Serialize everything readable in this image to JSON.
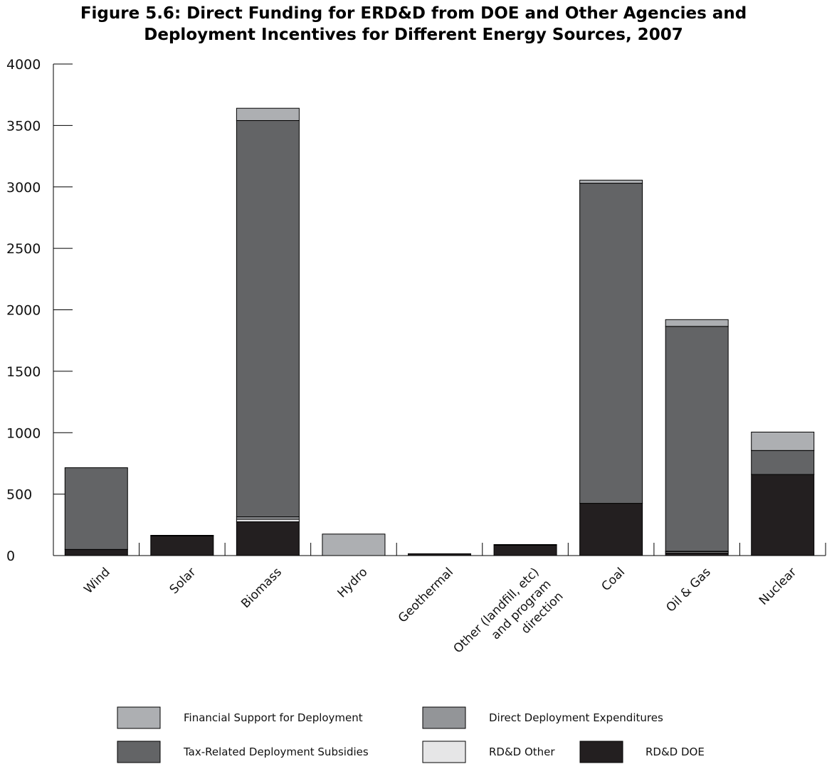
{
  "chart_data": {
    "type": "bar",
    "stacked": true,
    "title": "Figure 5.6:  Direct Funding for ERD&D from DOE and Other Agencies and",
    "subtitle": "Deployment Incentives for Different Energy Sources, 2007",
    "xlabel": "",
    "ylabel": "",
    "ylim": [
      0,
      4000
    ],
    "yticks": [
      0,
      500,
      1000,
      1500,
      2000,
      2500,
      3000,
      3500,
      4000
    ],
    "grid": false,
    "legend_position": "bottom",
    "categories": [
      [
        "Wind"
      ],
      [
        "Solar"
      ],
      [
        "Biomass"
      ],
      [
        "Hydro"
      ],
      [
        "Geothermal"
      ],
      [
        "Other (landfill, etc)",
        "and program",
        "direction"
      ],
      [
        "Coal"
      ],
      [
        "Oil & Gas"
      ],
      [
        "Nuclear"
      ]
    ],
    "series": [
      {
        "name": "RD&D DOE",
        "color": "#231f20",
        "values": [
          50,
          160,
          275,
          0,
          15,
          85,
          425,
          20,
          660
        ]
      },
      {
        "name": "RD&D Other",
        "color": "#e6e6e7",
        "values": [
          0,
          0,
          20,
          0,
          0,
          0,
          0,
          10,
          0
        ]
      },
      {
        "name": "Direct Deployment Expenditures",
        "color": "#939598",
        "values": [
          0,
          0,
          20,
          0,
          0,
          0,
          0,
          5,
          0
        ]
      },
      {
        "name": "Tax-Related Deployment Subsidies",
        "color": "#636466",
        "values": [
          665,
          5,
          3225,
          0,
          0,
          5,
          2605,
          1830,
          195
        ]
      },
      {
        "name": "Financial Support for Deployment",
        "color": "#adafb2",
        "values": [
          0,
          0,
          100,
          175,
          0,
          0,
          25,
          55,
          150
        ]
      }
    ],
    "legend": [
      {
        "label": "Financial Support for Deployment",
        "color": "#adafb2"
      },
      {
        "label": "Direct Deployment Expenditures",
        "color": "#939598"
      },
      {
        "label": "Tax-Related Deployment Subsidies",
        "color": "#636466"
      },
      {
        "label": "RD&D Other",
        "color": "#e6e6e7"
      },
      {
        "label": "RD&D DOE",
        "color": "#231f20"
      }
    ]
  }
}
